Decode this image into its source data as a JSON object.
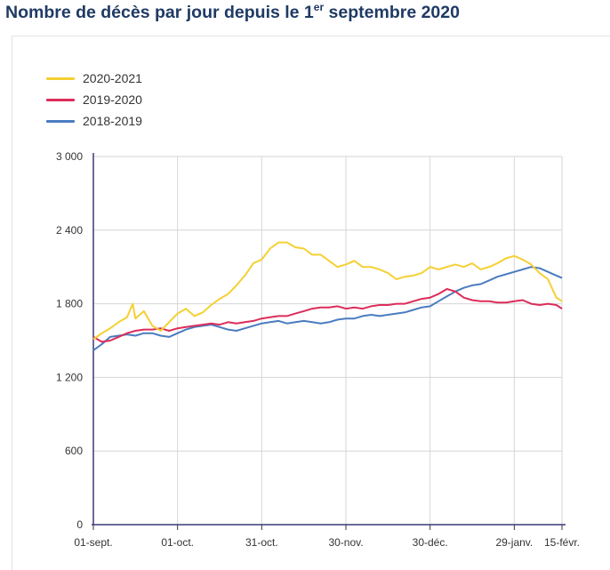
{
  "title": {
    "main": "Nombre de décès par jour depuis le 1",
    "sup": "er",
    "rest": " septembre 2020"
  },
  "chart_data": {
    "type": "line",
    "title": "Nombre de décès par jour depuis le 1er septembre 2020",
    "xlabel": "",
    "ylabel": "",
    "ylim": [
      0,
      3000
    ],
    "y_ticks": [
      0,
      600,
      1200,
      1800,
      2400,
      3000
    ],
    "y_tick_labels": [
      "0",
      "600",
      "1 200",
      "1 800",
      "2 400",
      "3 000"
    ],
    "x_ticks": [
      0,
      30,
      60,
      90,
      120,
      150,
      167
    ],
    "x_tick_labels": [
      "01-sept.",
      "01-oct.",
      "31-oct.",
      "30-nov.",
      "30-déc.",
      "29-janv.",
      "15-févr."
    ],
    "grid": true,
    "legend_position": "top-left",
    "series": [
      {
        "name": "2020-2021",
        "color": "#f5d033",
        "points": [
          [
            0,
            1510
          ],
          [
            3,
            1560
          ],
          [
            6,
            1600
          ],
          [
            9,
            1650
          ],
          [
            12,
            1690
          ],
          [
            14,
            1800
          ],
          [
            15,
            1680
          ],
          [
            18,
            1740
          ],
          [
            21,
            1620
          ],
          [
            24,
            1580
          ],
          [
            27,
            1650
          ],
          [
            30,
            1720
          ],
          [
            33,
            1760
          ],
          [
            36,
            1700
          ],
          [
            39,
            1730
          ],
          [
            42,
            1790
          ],
          [
            45,
            1840
          ],
          [
            48,
            1880
          ],
          [
            51,
            1950
          ],
          [
            54,
            2030
          ],
          [
            57,
            2130
          ],
          [
            60,
            2160
          ],
          [
            63,
            2250
          ],
          [
            66,
            2300
          ],
          [
            69,
            2300
          ],
          [
            72,
            2260
          ],
          [
            75,
            2250
          ],
          [
            78,
            2200
          ],
          [
            81,
            2200
          ],
          [
            84,
            2150
          ],
          [
            87,
            2100
          ],
          [
            90,
            2120
          ],
          [
            93,
            2150
          ],
          [
            96,
            2100
          ],
          [
            99,
            2100
          ],
          [
            102,
            2080
          ],
          [
            105,
            2050
          ],
          [
            108,
            2000
          ],
          [
            111,
            2020
          ],
          [
            114,
            2030
          ],
          [
            117,
            2050
          ],
          [
            120,
            2100
          ],
          [
            123,
            2080
          ],
          [
            126,
            2100
          ],
          [
            129,
            2120
          ],
          [
            132,
            2100
          ],
          [
            135,
            2130
          ],
          [
            138,
            2080
          ],
          [
            141,
            2100
          ],
          [
            144,
            2130
          ],
          [
            147,
            2170
          ],
          [
            150,
            2190
          ],
          [
            153,
            2160
          ],
          [
            156,
            2120
          ],
          [
            159,
            2050
          ],
          [
            162,
            2000
          ],
          [
            164,
            1900
          ],
          [
            165,
            1850
          ],
          [
            167,
            1820
          ]
        ]
      },
      {
        "name": "2019-2020",
        "color": "#dc2d5a",
        "points": [
          [
            0,
            1530
          ],
          [
            3,
            1490
          ],
          [
            6,
            1500
          ],
          [
            9,
            1530
          ],
          [
            12,
            1560
          ],
          [
            15,
            1580
          ],
          [
            18,
            1590
          ],
          [
            21,
            1590
          ],
          [
            24,
            1600
          ],
          [
            27,
            1580
          ],
          [
            30,
            1600
          ],
          [
            33,
            1610
          ],
          [
            36,
            1620
          ],
          [
            39,
            1630
          ],
          [
            42,
            1640
          ],
          [
            45,
            1630
          ],
          [
            48,
            1650
          ],
          [
            51,
            1640
          ],
          [
            54,
            1650
          ],
          [
            57,
            1660
          ],
          [
            60,
            1680
          ],
          [
            63,
            1690
          ],
          [
            66,
            1700
          ],
          [
            69,
            1700
          ],
          [
            72,
            1720
          ],
          [
            75,
            1740
          ],
          [
            78,
            1760
          ],
          [
            81,
            1770
          ],
          [
            84,
            1770
          ],
          [
            87,
            1780
          ],
          [
            90,
            1760
          ],
          [
            93,
            1770
          ],
          [
            96,
            1760
          ],
          [
            99,
            1780
          ],
          [
            102,
            1790
          ],
          [
            105,
            1790
          ],
          [
            108,
            1800
          ],
          [
            111,
            1800
          ],
          [
            114,
            1820
          ],
          [
            117,
            1840
          ],
          [
            120,
            1850
          ],
          [
            123,
            1880
          ],
          [
            126,
            1920
          ],
          [
            129,
            1900
          ],
          [
            132,
            1850
          ],
          [
            135,
            1830
          ],
          [
            138,
            1820
          ],
          [
            141,
            1820
          ],
          [
            144,
            1810
          ],
          [
            147,
            1810
          ],
          [
            150,
            1820
          ],
          [
            153,
            1830
          ],
          [
            156,
            1800
          ],
          [
            159,
            1790
          ],
          [
            162,
            1800
          ],
          [
            165,
            1790
          ],
          [
            167,
            1760
          ]
        ]
      },
      {
        "name": "2018-2019",
        "color": "#4a7cc0",
        "points": [
          [
            0,
            1420
          ],
          [
            3,
            1470
          ],
          [
            6,
            1530
          ],
          [
            9,
            1540
          ],
          [
            12,
            1550
          ],
          [
            15,
            1540
          ],
          [
            18,
            1560
          ],
          [
            21,
            1560
          ],
          [
            24,
            1540
          ],
          [
            27,
            1530
          ],
          [
            30,
            1560
          ],
          [
            33,
            1590
          ],
          [
            36,
            1610
          ],
          [
            39,
            1620
          ],
          [
            42,
            1630
          ],
          [
            45,
            1610
          ],
          [
            48,
            1590
          ],
          [
            51,
            1580
          ],
          [
            54,
            1600
          ],
          [
            57,
            1620
          ],
          [
            60,
            1640
          ],
          [
            63,
            1650
          ],
          [
            66,
            1660
          ],
          [
            69,
            1640
          ],
          [
            72,
            1650
          ],
          [
            75,
            1660
          ],
          [
            78,
            1650
          ],
          [
            81,
            1640
          ],
          [
            84,
            1650
          ],
          [
            87,
            1670
          ],
          [
            90,
            1680
          ],
          [
            93,
            1680
          ],
          [
            96,
            1700
          ],
          [
            99,
            1710
          ],
          [
            102,
            1700
          ],
          [
            105,
            1710
          ],
          [
            108,
            1720
          ],
          [
            111,
            1730
          ],
          [
            114,
            1750
          ],
          [
            117,
            1770
          ],
          [
            120,
            1780
          ],
          [
            123,
            1820
          ],
          [
            126,
            1860
          ],
          [
            129,
            1900
          ],
          [
            132,
            1930
          ],
          [
            135,
            1950
          ],
          [
            138,
            1960
          ],
          [
            141,
            1990
          ],
          [
            144,
            2020
          ],
          [
            147,
            2040
          ],
          [
            150,
            2060
          ],
          [
            153,
            2080
          ],
          [
            156,
            2100
          ],
          [
            159,
            2090
          ],
          [
            162,
            2060
          ],
          [
            165,
            2030
          ],
          [
            167,
            2010
          ]
        ]
      }
    ]
  }
}
